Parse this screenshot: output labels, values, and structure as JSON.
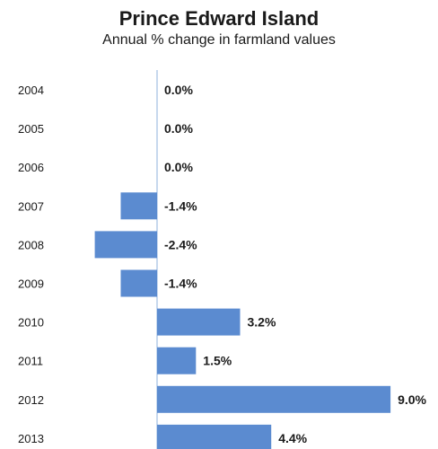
{
  "chart_data": {
    "type": "bar",
    "orientation": "horizontal",
    "title": "Prince Edward Island",
    "subtitle": "Annual % change in farmland values",
    "categories": [
      "2004",
      "2005",
      "2006",
      "2007",
      "2008",
      "2009",
      "2010",
      "2011",
      "2012",
      "2013"
    ],
    "values": [
      0.0,
      0.0,
      0.0,
      -1.4,
      -2.4,
      -1.4,
      3.2,
      1.5,
      9.0,
      4.4
    ],
    "value_labels": [
      "0.0%",
      "0.0%",
      "0.0%",
      "-1.4%",
      "-2.4%",
      "-1.4%",
      "3.2%",
      "1.5%",
      "9.0%",
      "4.4%"
    ],
    "xlabel": "",
    "ylabel": "",
    "grid": false,
    "legend": "none",
    "colors": {
      "bar": "#5b8bd0",
      "axis": "#8fb0dc"
    }
  }
}
